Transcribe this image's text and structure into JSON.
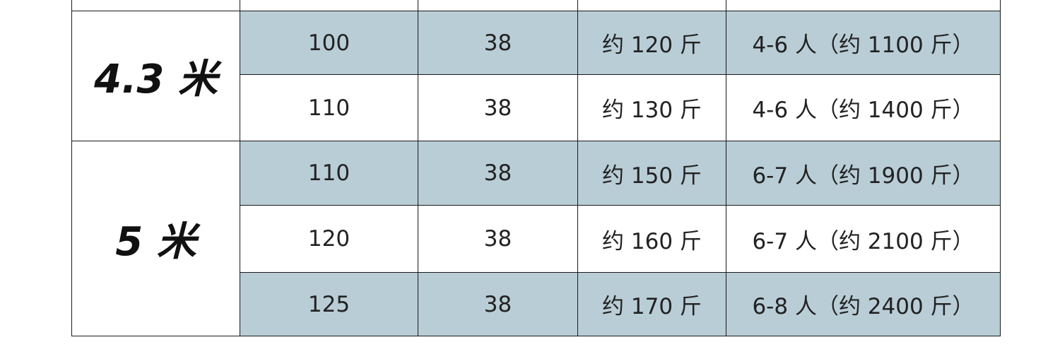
{
  "table": {
    "shade_color": "#b9cdd6",
    "groups": [
      {
        "label": "4.3 米",
        "rows": [
          {
            "c1": "100",
            "c2": "38",
            "c3": "约 120 斤",
            "c4": "4-6 人（约 1100 斤）",
            "shaded": true
          },
          {
            "c1": "110",
            "c2": "38",
            "c3": "约 130 斤",
            "c4": "4-6 人（约 1400 斤）",
            "shaded": false
          }
        ]
      },
      {
        "label": "5 米",
        "rows": [
          {
            "c1": "110",
            "c2": "38",
            "c3": "约 150 斤",
            "c4": "6-7 人（约 1900 斤）",
            "shaded": true
          },
          {
            "c1": "120",
            "c2": "38",
            "c3": "约 160 斤",
            "c4": "6-7 人（约 2100 斤）",
            "shaded": false
          },
          {
            "c1": "125",
            "c2": "38",
            "c3": "约 170 斤",
            "c4": "6-8 人（约 2400 斤）",
            "shaded": true
          }
        ]
      }
    ]
  }
}
